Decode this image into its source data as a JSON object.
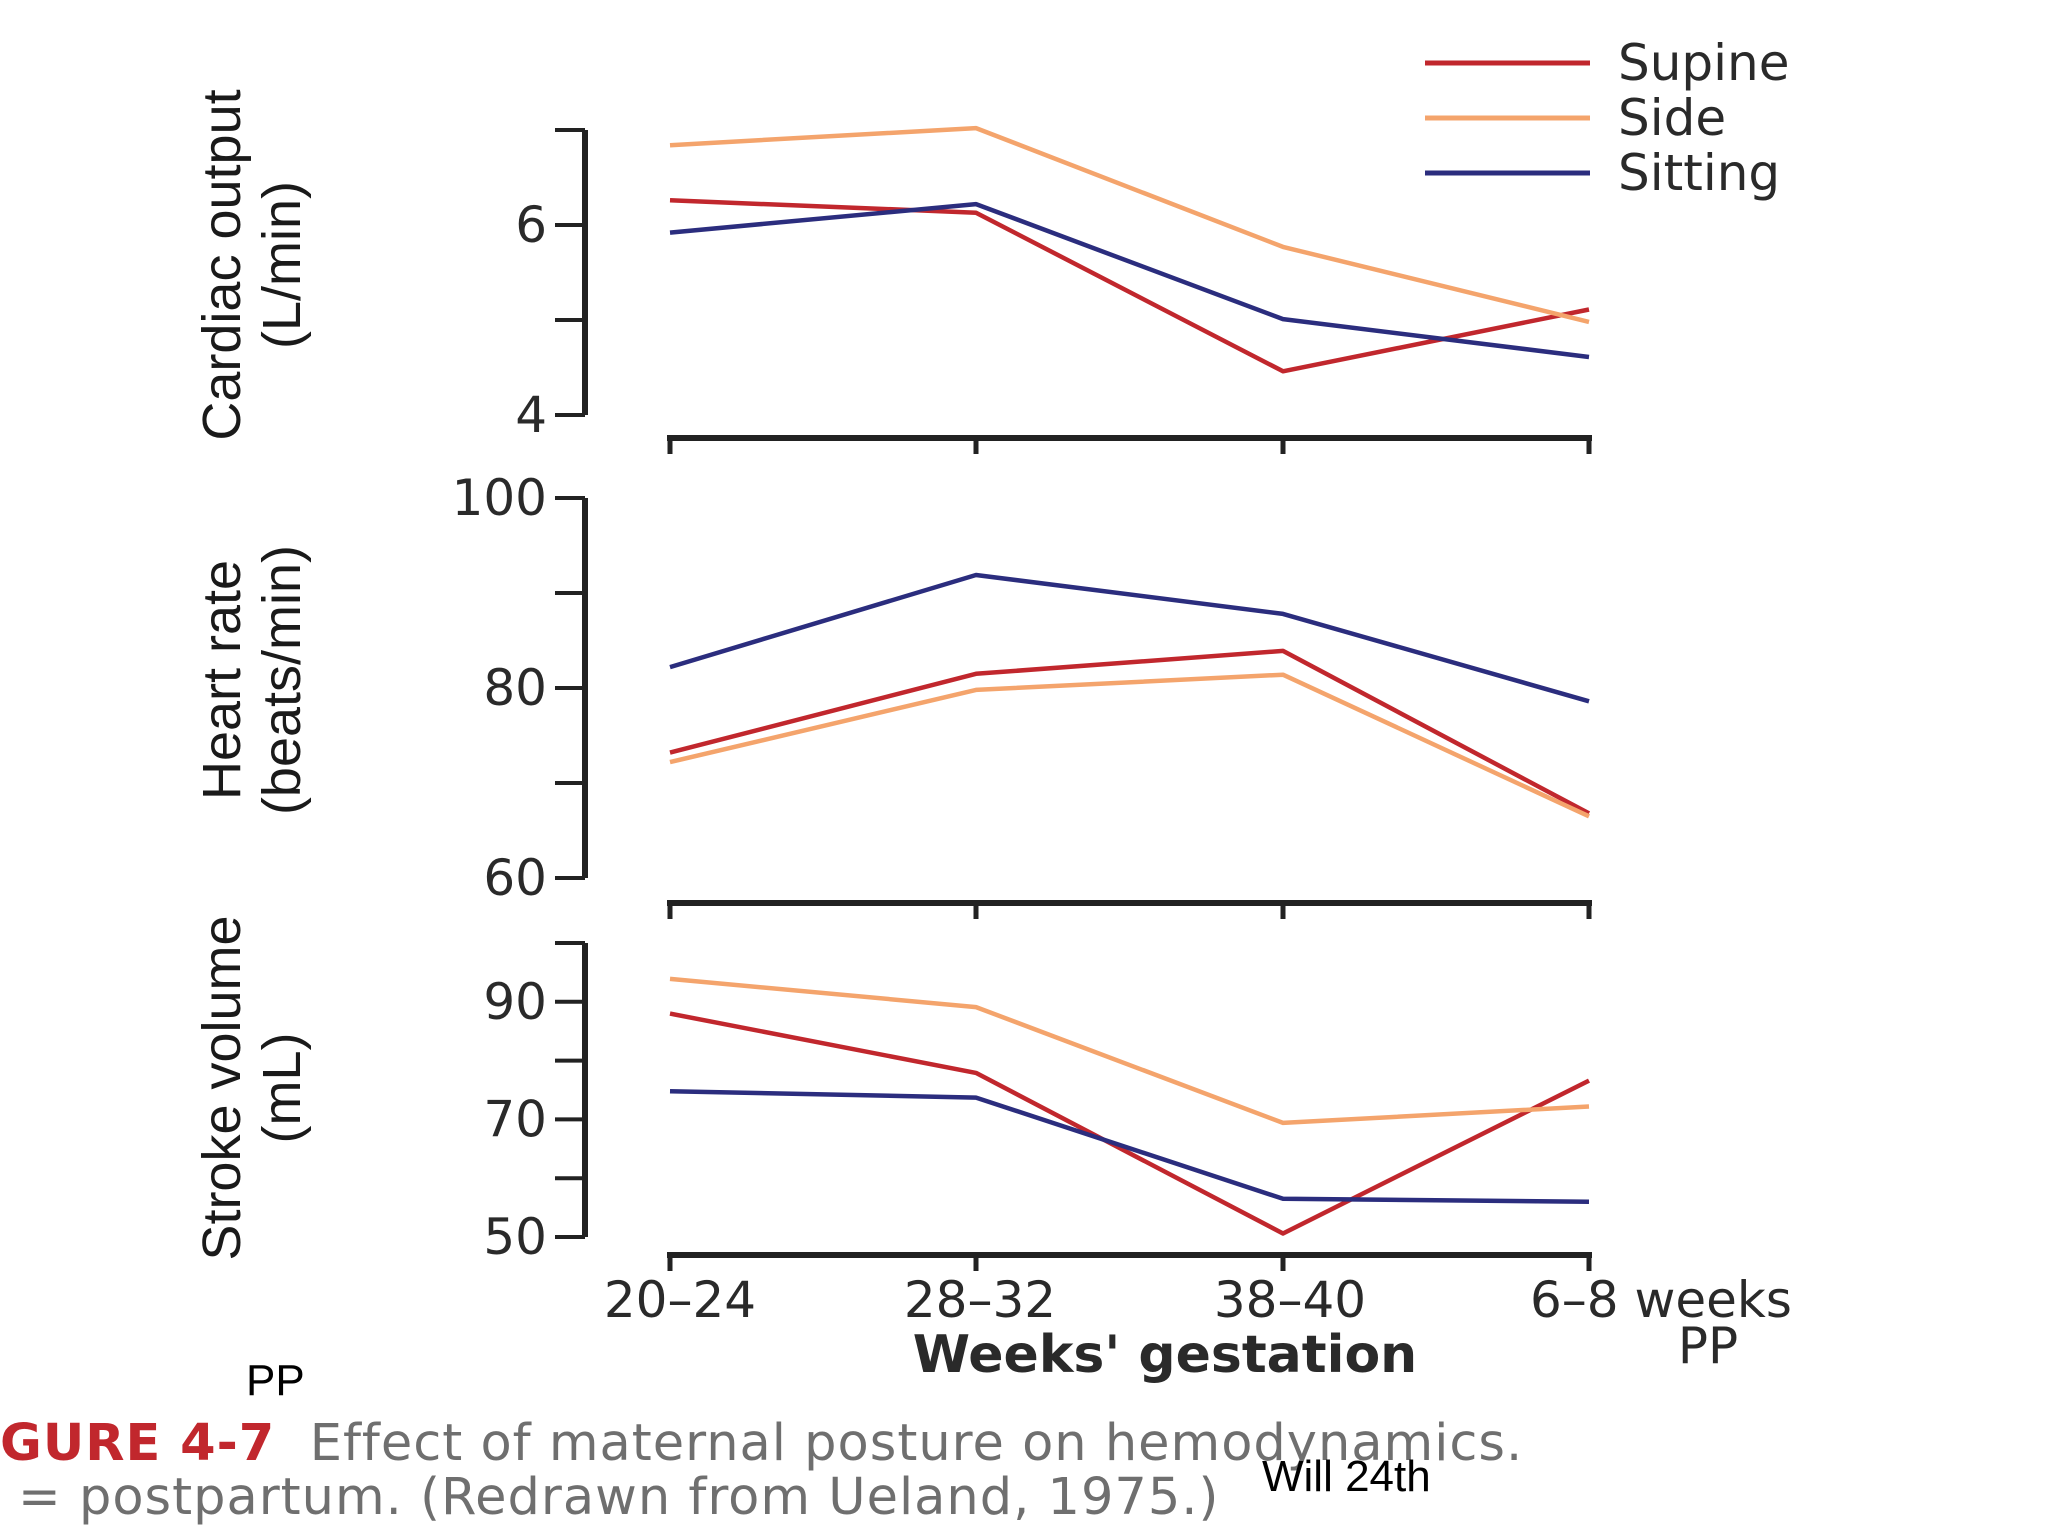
{
  "chart_data": [
    {
      "type": "line",
      "ylabel_line1": "Cardiac output",
      "ylabel_line2": "(L/min)",
      "ylim": [
        4,
        7
      ],
      "yticks": [
        4,
        5,
        6,
        7
      ],
      "ytick_labels": [
        "4",
        "",
        "6",
        ""
      ],
      "categories": [
        "20–24",
        "28–32",
        "38–40",
        "6–8 weeks PP"
      ],
      "series": [
        {
          "name": "Supine",
          "color": "#c1272d",
          "values": [
            6.26,
            6.13,
            4.46,
            5.11
          ]
        },
        {
          "name": "Side",
          "color": "#f4a46c",
          "values": [
            6.84,
            7.02,
            5.77,
            4.98
          ]
        },
        {
          "name": "Sitting",
          "color": "#2b2d7e",
          "values": [
            5.92,
            6.22,
            5.01,
            4.61
          ]
        }
      ]
    },
    {
      "type": "line",
      "ylabel_line1": "Heart rate",
      "ylabel_line2": "(beats/min)",
      "ylim": [
        60,
        100
      ],
      "yticks": [
        60,
        70,
        80,
        90,
        100
      ],
      "ytick_labels": [
        "60",
        "",
        "80",
        "",
        "100"
      ],
      "categories": [
        "20–24",
        "28–32",
        "38–40",
        "6–8 weeks PP"
      ],
      "series": [
        {
          "name": "Supine",
          "color": "#c1272d",
          "values": [
            73.2,
            81.5,
            83.9,
            66.8
          ]
        },
        {
          "name": "Side",
          "color": "#f4a46c",
          "values": [
            72.2,
            79.8,
            81.4,
            66.5
          ]
        },
        {
          "name": "Sitting",
          "color": "#2b2d7e",
          "values": [
            82.2,
            91.9,
            87.8,
            78.6
          ]
        }
      ]
    },
    {
      "type": "line",
      "ylabel_line1": "Stroke volume",
      "ylabel_line2": "(mL)",
      "ylim": [
        50,
        100
      ],
      "yticks": [
        50,
        60,
        70,
        80,
        90,
        100
      ],
      "ytick_labels": [
        "50",
        "",
        "70",
        "",
        "90",
        ""
      ],
      "categories": [
        "20–24",
        "28–32",
        "38–40",
        "6–8 weeks PP"
      ],
      "series": [
        {
          "name": "Supine",
          "color": "#c1272d",
          "values": [
            88.0,
            77.9,
            50.6,
            76.6
          ]
        },
        {
          "name": "Side",
          "color": "#f4a46c",
          "values": [
            93.9,
            89.1,
            69.4,
            72.2
          ]
        },
        {
          "name": "Sitting",
          "color": "#2b2d7e",
          "values": [
            74.8,
            73.7,
            56.5,
            56.0
          ]
        }
      ]
    }
  ],
  "legend": [
    {
      "label": "Supine",
      "color": "#c1272d"
    },
    {
      "label": "Side",
      "color": "#f4a46c"
    },
    {
      "label": "Sitting",
      "color": "#2b2d7e"
    }
  ],
  "xaxis": {
    "tick_labels": [
      "20–24",
      "28–32",
      "38–40",
      "6–8 weeks"
    ],
    "pp_label": "PP",
    "title": "Weeks' gestation"
  },
  "caption": {
    "figure_label": "GURE 4-7",
    "line1": "Effect of maternal posture on hemodynamics.",
    "line2": "= postpartum. (Redrawn from Ueland, 1975.)"
  },
  "notes": {
    "pp_left": "PP",
    "overlay": "Will 24th"
  }
}
